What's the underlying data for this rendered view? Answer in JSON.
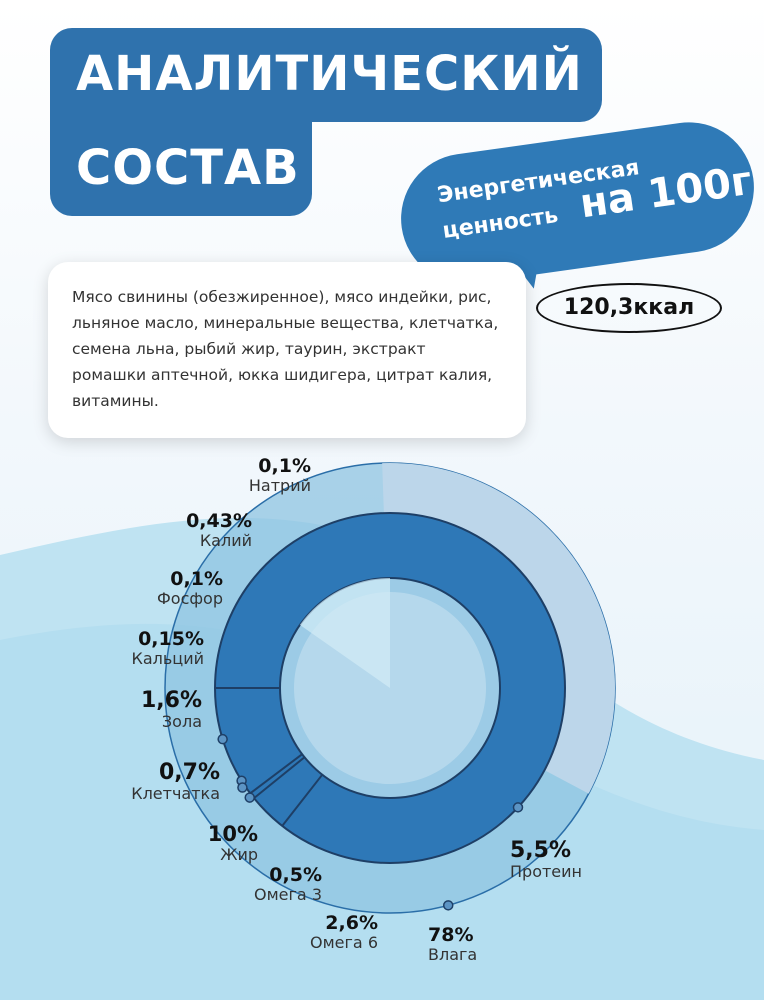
{
  "header": {
    "title_line1": "АНАЛИТИЧЕСКИЙ",
    "title_line2": "СОСТАВ"
  },
  "energy": {
    "line1": "Энергетическая",
    "line2": "ценность",
    "per": "на 100г",
    "value": "120,3ккал"
  },
  "ingredients": "Мясо свинины (обезжиренное), мясо индейки, рис, льняное масло, минеральные вещества, клетчатка, семена льна, рыбий жир, таурин, экстракт ромашки аптечной, юкка шидигера, цитрат калия, витамины.",
  "colors": {
    "primary": "#2f72ad",
    "ring": "#2e78b7",
    "outer": "#8fc4e2",
    "pale": "#bcd6ea"
  },
  "chart_data": {
    "type": "pie",
    "categories": [
      "Натрий",
      "Калий",
      "Фосфор",
      "Кальций",
      "Зола",
      "Клетчатка",
      "Жир",
      "Омега 3",
      "Омега 6",
      "Влага",
      "Протеин"
    ],
    "values": [
      0.1,
      0.43,
      0.1,
      0.15,
      1.6,
      0.7,
      10,
      0.5,
      2.6,
      78,
      5.5
    ],
    "labels": [
      "0,1%",
      "0,43%",
      "0,1%",
      "0,15%",
      "1,6%",
      "0,7%",
      "10%",
      "0,5%",
      "2,6%",
      "78%",
      "5,5%"
    ]
  }
}
